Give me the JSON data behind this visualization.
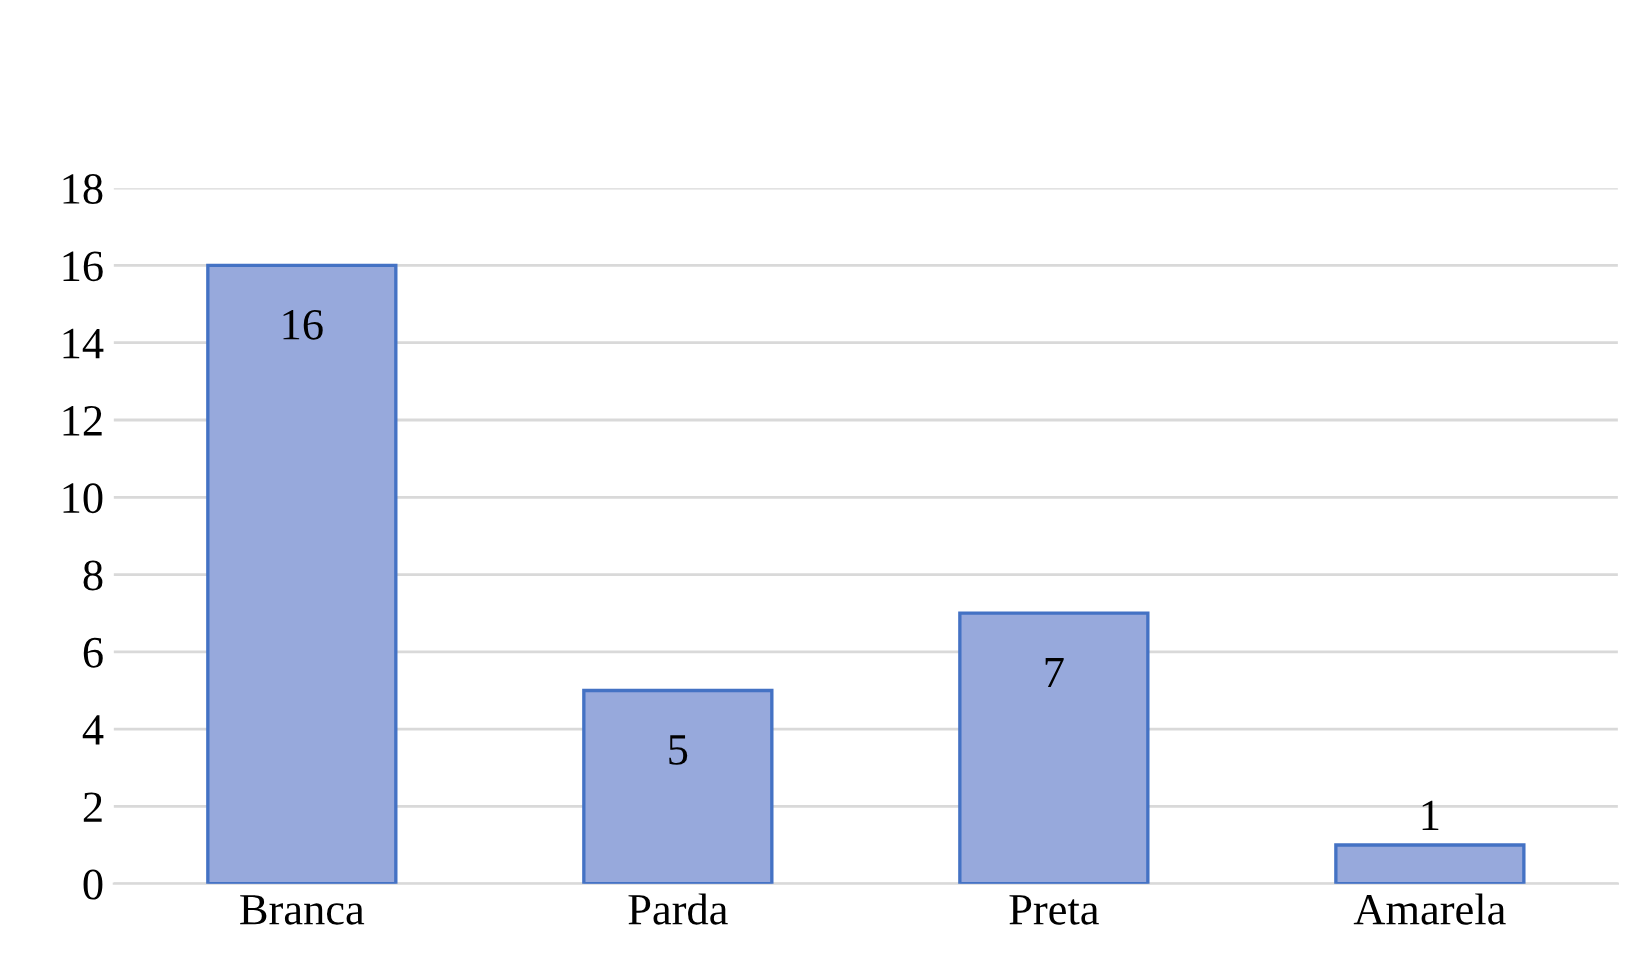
{
  "chart_data": {
    "type": "bar",
    "categories": [
      "Branca",
      "Parda",
      "Preta",
      "Amarela"
    ],
    "values": [
      16,
      5,
      7,
      1
    ],
    "color": "#97a9dc",
    "ylim": [
      0,
      18
    ],
    "yticks": [
      0,
      2,
      4,
      6,
      8,
      10,
      12,
      14,
      16,
      18
    ],
    "grid": "y",
    "data_labels": true
  }
}
